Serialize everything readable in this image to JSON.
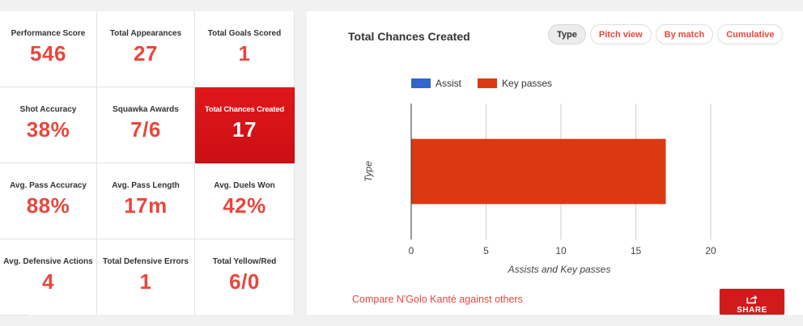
{
  "stats": [
    {
      "label": "Performance Score",
      "value": "546"
    },
    {
      "label": "Total Appearances",
      "value": "27"
    },
    {
      "label": "Total Goals Scored",
      "value": "1"
    },
    {
      "label": "Shot Accuracy",
      "value": "38%"
    },
    {
      "label": "Squawka Awards",
      "value": "7/6"
    },
    {
      "label": "Total Chances Created",
      "value": "17",
      "active": true
    },
    {
      "label": "Avg. Pass Accuracy",
      "value": "88%"
    },
    {
      "label": "Avg. Pass Length",
      "value": "17m"
    },
    {
      "label": "Avg. Duels Won",
      "value": "42%"
    },
    {
      "label": "Avg. Defensive Actions",
      "value": "4"
    },
    {
      "label": "Total Defensive Errors",
      "value": "1"
    },
    {
      "label": "Total Yellow/Red",
      "value": "6/0"
    }
  ],
  "chart_panel": {
    "title": "Total Chances Created",
    "buttons": [
      "Type",
      "Pitch view",
      "By match",
      "Cumulative"
    ],
    "selected_button": "Type",
    "compare_link": "Compare N'Golo Kanté against others",
    "share_label": "SHARE"
  },
  "chart_data": {
    "type": "bar",
    "orientation": "horizontal",
    "stacked": true,
    "title": "Total Chances Created",
    "xlabel": "Assists and Key passes",
    "ylabel": "Type",
    "xlim": [
      0,
      20
    ],
    "xticks": [
      0,
      5,
      10,
      15,
      20
    ],
    "categories": [
      ""
    ],
    "series": [
      {
        "name": "Assist",
        "values": [
          0
        ],
        "color": "#3366cc"
      },
      {
        "name": "Key passes",
        "values": [
          17
        ],
        "color": "#dc3912"
      }
    ],
    "legend_position": "top",
    "grid": true
  },
  "colors": {
    "accent": "#e8473c",
    "active_tile": "#d9141a"
  }
}
